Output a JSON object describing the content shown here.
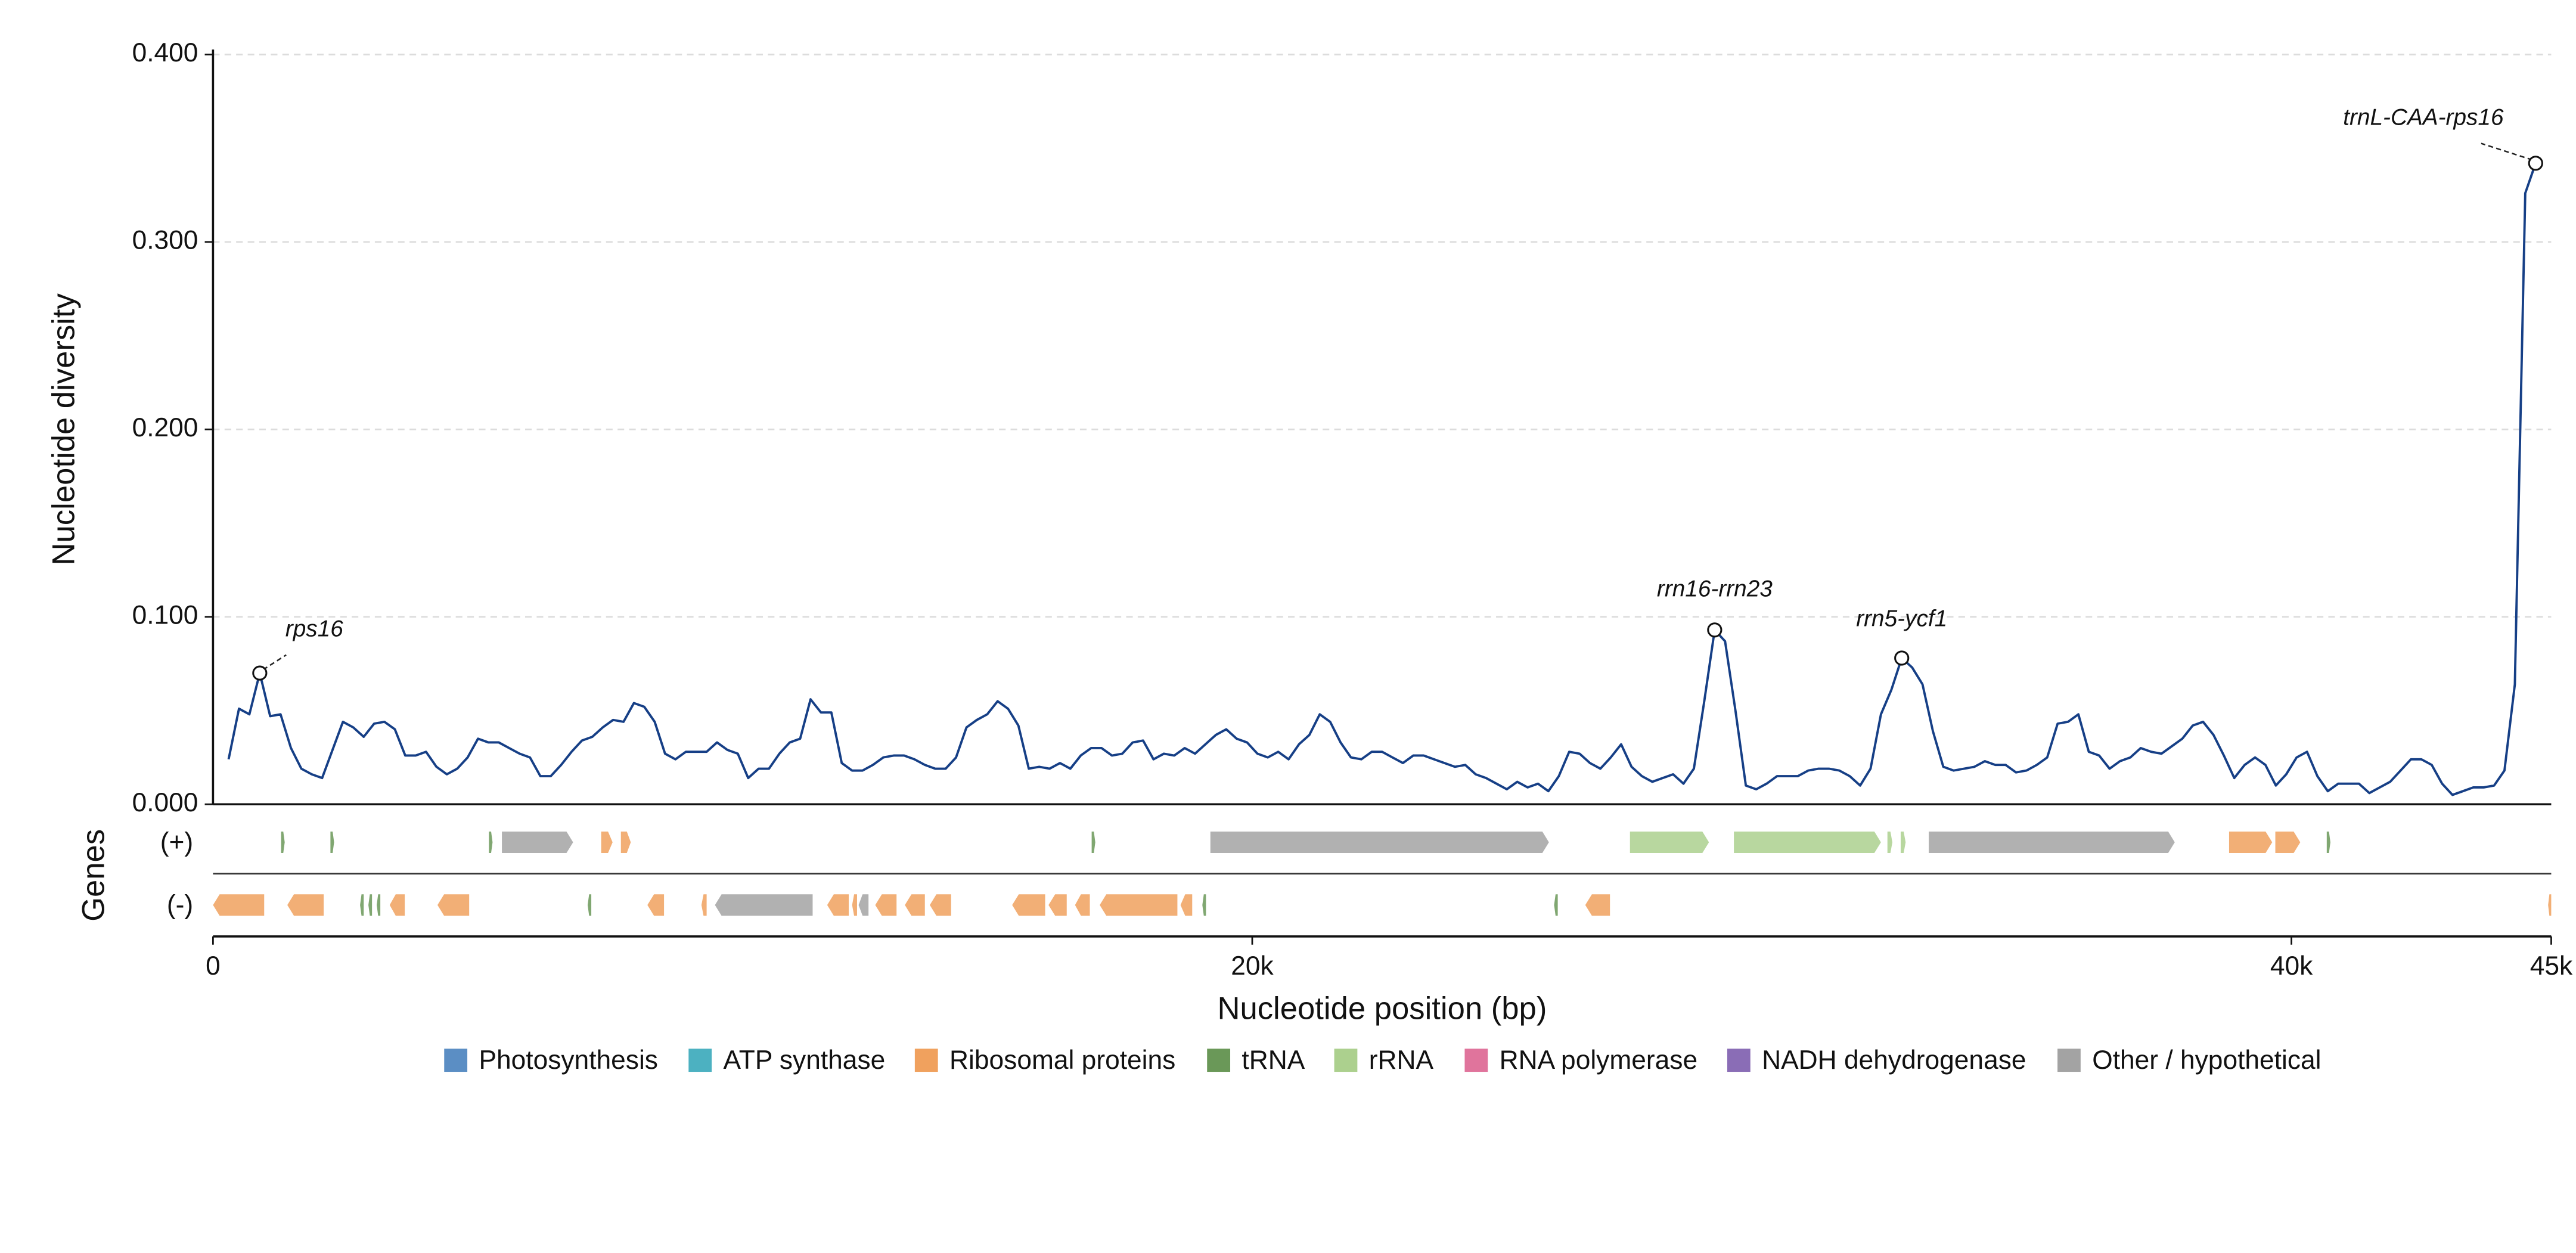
{
  "chart_data": {
    "type": "line",
    "ylabel": "Nucleotide diversity",
    "xlabel": "Nucleotide position (bp)",
    "color": "#163f86",
    "xlim": [
      0,
      45000
    ],
    "ylim": [
      0,
      0.4
    ],
    "xticks": [
      0,
      {
        "value": 20000,
        "label": "20k"
      },
      {
        "value": 40000,
        "label": "40k"
      },
      {
        "value": 45000,
        "label": "45k"
      }
    ],
    "yticks": [
      {
        "value": 0,
        "label": "0.000"
      },
      {
        "value": 0.1,
        "label": "0.100"
      },
      {
        "value": 0.2,
        "label": "0.200"
      },
      {
        "value": 0.3,
        "label": "0.300"
      },
      {
        "value": 0.4,
        "label": "0.400"
      }
    ],
    "grid": true,
    "x": [
      300,
      500,
      700,
      900,
      1100,
      1300,
      1500,
      1700,
      1900,
      2100,
      2300,
      2500,
      2700,
      2900,
      3100,
      3300,
      3500,
      3700,
      3900,
      4100,
      4300,
      4500,
      4700,
      4900,
      5100,
      5300,
      5500,
      5700,
      5900,
      6100,
      6300,
      6500,
      6700,
      6900,
      7100,
      7300,
      7500,
      7700,
      7900,
      8100,
      8300,
      8500,
      8700,
      8900,
      9100,
      9300,
      9500,
      9700,
      9900,
      10100,
      10300,
      10500,
      10700,
      10900,
      11100,
      11300,
      11500,
      11700,
      11900,
      12100,
      12300,
      12500,
      12700,
      12900,
      13100,
      13300,
      13500,
      13700,
      13900,
      14100,
      14300,
      14500,
      14700,
      14900,
      15100,
      15300,
      15500,
      15700,
      15900,
      16100,
      16300,
      16500,
      16700,
      16900,
      17100,
      17300,
      17500,
      17700,
      17900,
      18100,
      18300,
      18500,
      18700,
      18900,
      19100,
      19300,
      19500,
      19700,
      19900,
      20100,
      20300,
      20500,
      20700,
      20900,
      21100,
      21300,
      21500,
      21700,
      21900,
      22100,
      22300,
      22500,
      22700,
      22900,
      23100,
      23300,
      23500,
      23700,
      23900,
      24100,
      24300,
      24500,
      24700,
      24900,
      25100,
      25300,
      25500,
      25700,
      25900,
      26100,
      26300,
      26500,
      26700,
      26900,
      27100,
      27300,
      27500,
      27700,
      27900,
      28100,
      28300,
      28500,
      28700,
      28900,
      29100,
      29300,
      29500,
      29700,
      29900,
      30100,
      30300,
      30500,
      30700,
      30900,
      31100,
      31300,
      31500,
      31700,
      31900,
      32100,
      32300,
      32500,
      32700,
      32900,
      33100,
      33300,
      33500,
      33700,
      33900,
      34100,
      34300,
      34500,
      34700,
      34900,
      35100,
      35300,
      35500,
      35700,
      35900,
      36100,
      36300,
      36500,
      36700,
      36900,
      37100,
      37300,
      37500,
      37700,
      37900,
      38100,
      38300,
      38500,
      38700,
      38900,
      39100,
      39300,
      39500,
      39700,
      39900,
      40100,
      40300,
      40500,
      40700,
      40900,
      41100,
      41300,
      41500,
      41700,
      41900,
      42100,
      42300,
      42500,
      42700,
      42900,
      43100,
      43300,
      43500,
      43700,
      43900,
      44100,
      44300,
      44500,
      44700
    ],
    "values": [
      0.024,
      0.051,
      0.048,
      0.07,
      0.047,
      0.048,
      0.03,
      0.019,
      0.016,
      0.014,
      0.029,
      0.044,
      0.041,
      0.036,
      0.043,
      0.044,
      0.04,
      0.026,
      0.026,
      0.028,
      0.02,
      0.016,
      0.019,
      0.025,
      0.035,
      0.033,
      0.033,
      0.03,
      0.027,
      0.025,
      0.015,
      0.015,
      0.021,
      0.028,
      0.034,
      0.036,
      0.041,
      0.045,
      0.044,
      0.054,
      0.052,
      0.044,
      0.027,
      0.024,
      0.028,
      0.028,
      0.028,
      0.033,
      0.029,
      0.027,
      0.014,
      0.019,
      0.019,
      0.027,
      0.033,
      0.035,
      0.056,
      0.049,
      0.049,
      0.022,
      0.018,
      0.018,
      0.021,
      0.025,
      0.026,
      0.026,
      0.024,
      0.021,
      0.019,
      0.019,
      0.025,
      0.041,
      0.045,
      0.048,
      0.055,
      0.051,
      0.042,
      0.019,
      0.02,
      0.019,
      0.022,
      0.019,
      0.026,
      0.03,
      0.03,
      0.026,
      0.027,
      0.033,
      0.034,
      0.024,
      0.027,
      0.026,
      0.03,
      0.027,
      0.032,
      0.037,
      0.04,
      0.035,
      0.033,
      0.027,
      0.025,
      0.028,
      0.024,
      0.032,
      0.037,
      0.048,
      0.044,
      0.033,
      0.025,
      0.024,
      0.028,
      0.028,
      0.025,
      0.022,
      0.026,
      0.026,
      0.024,
      0.022,
      0.02,
      0.021,
      0.016,
      0.014,
      0.011,
      0.008,
      0.012,
      0.009,
      0.011,
      0.007,
      0.015,
      0.028,
      0.027,
      0.022,
      0.019,
      0.025,
      0.032,
      0.02,
      0.015,
      0.012,
      0.014,
      0.016,
      0.011,
      0.019,
      0.055,
      0.093,
      0.087,
      0.05,
      0.01,
      0.008,
      0.011,
      0.015,
      0.015,
      0.015,
      0.018,
      0.019,
      0.019,
      0.018,
      0.015,
      0.01,
      0.019,
      0.048,
      0.061,
      0.078,
      0.073,
      0.064,
      0.039,
      0.02,
      0.018,
      0.019,
      0.02,
      0.023,
      0.021,
      0.021,
      0.017,
      0.018,
      0.021,
      0.025,
      0.043,
      0.044,
      0.048,
      0.028,
      0.026,
      0.019,
      0.023,
      0.025,
      0.03,
      0.028,
      0.027,
      0.031,
      0.035,
      0.042,
      0.044,
      0.037,
      0.026,
      0.014,
      0.021,
      0.025,
      0.021,
      0.01,
      0.016,
      0.025,
      0.028,
      0.015,
      0.007,
      0.011,
      0.011,
      0.011,
      0.006,
      0.009,
      0.012,
      0.018,
      0.024,
      0.024,
      0.021,
      0.011,
      0.005,
      0.007,
      0.009,
      0.009,
      0.01,
      0.018,
      0.064,
      0.326,
      0.342
    ],
    "annotations": [
      {
        "text": "rps16",
        "x": 900,
        "y": 0.07
      },
      {
        "text": "rrn16-rrn23",
        "x": 28900,
        "y": 0.093
      },
      {
        "text": "rrn5-ycf1",
        "x": 32500,
        "y": 0.078
      },
      {
        "text": "trnL-CAA-rps16",
        "x": 44700,
        "y": 0.342
      }
    ],
    "genes_label": "Genes",
    "categories": [
      {
        "name": "Photosynthesis",
        "color": "#5b8ec4"
      },
      {
        "name": "ATP synthase",
        "color": "#4cb1c1"
      },
      {
        "name": "Ribosomal proteins",
        "color": "#f0a15e"
      },
      {
        "name": "tRNA",
        "color": "#6a9858"
      },
      {
        "name": "rRNA",
        "color": "#acd08e"
      },
      {
        "name": "RNA polymerase",
        "color": "#e0749c"
      },
      {
        "name": "NADH dehydrogenase",
        "color": "#8a6db6"
      },
      {
        "name": "Other / hypothetical",
        "color": "#a3a3a3"
      }
    ],
    "tracks": [
      {
        "label": "(+)",
        "genes": [
          {
            "start": 1310,
            "end": 1380,
            "category": "tRNA"
          },
          {
            "start": 2260,
            "end": 2330,
            "category": "tRNA"
          },
          {
            "start": 5310,
            "end": 5380,
            "category": "tRNA"
          },
          {
            "start": 5560,
            "end": 6930,
            "category": "Other / hypothetical"
          },
          {
            "start": 7470,
            "end": 7690,
            "category": "Ribosomal proteins"
          },
          {
            "start": 7850,
            "end": 8040,
            "category": "Ribosomal proteins"
          },
          {
            "start": 16910,
            "end": 16980,
            "category": "tRNA"
          },
          {
            "start": 19195,
            "end": 25710,
            "category": "Other / hypothetical"
          },
          {
            "start": 27270,
            "end": 28790,
            "category": "rRNA"
          },
          {
            "start": 29270,
            "end": 32100,
            "category": "rRNA"
          },
          {
            "start": 32225,
            "end": 32320,
            "category": "rRNA"
          },
          {
            "start": 32480,
            "end": 32575,
            "category": "rRNA"
          },
          {
            "start": 33020,
            "end": 37755,
            "category": "Other / hypothetical"
          },
          {
            "start": 38800,
            "end": 39630,
            "category": "Ribosomal proteins"
          },
          {
            "start": 39690,
            "end": 40170,
            "category": "Ribosomal proteins"
          },
          {
            "start": 40680,
            "end": 40750,
            "category": "tRNA"
          }
        ]
      },
      {
        "label": "(-)",
        "genes": [
          {
            "start": 0,
            "end": 985,
            "category": "Ribosomal proteins"
          },
          {
            "start": 1430,
            "end": 2130,
            "category": "Ribosomal proteins"
          },
          {
            "start": 2830,
            "end": 2900,
            "category": "tRNA"
          },
          {
            "start": 2990,
            "end": 3060,
            "category": "tRNA"
          },
          {
            "start": 3150,
            "end": 3220,
            "category": "tRNA"
          },
          {
            "start": 3400,
            "end": 3690,
            "category": "Ribosomal proteins"
          },
          {
            "start": 4320,
            "end": 4930,
            "category": "Ribosomal proteins"
          },
          {
            "start": 7210,
            "end": 7280,
            "category": "tRNA"
          },
          {
            "start": 8360,
            "end": 8680,
            "category": "Ribosomal proteins"
          },
          {
            "start": 9400,
            "end": 9500,
            "category": "Ribosomal proteins"
          },
          {
            "start": 9660,
            "end": 11540,
            "category": "Other / hypothetical"
          },
          {
            "start": 11820,
            "end": 12235,
            "category": "Ribosomal proteins"
          },
          {
            "start": 12300,
            "end": 12395,
            "category": "Ribosomal proteins"
          },
          {
            "start": 12425,
            "end": 12615,
            "category": "Other / hypothetical"
          },
          {
            "start": 12745,
            "end": 13155,
            "category": "Ribosomal proteins"
          },
          {
            "start": 13315,
            "end": 13700,
            "category": "Ribosomal proteins"
          },
          {
            "start": 13795,
            "end": 14205,
            "category": "Ribosomal proteins"
          },
          {
            "start": 15380,
            "end": 16015,
            "category": "Ribosomal proteins"
          },
          {
            "start": 16080,
            "end": 16430,
            "category": "Ribosomal proteins"
          },
          {
            "start": 16590,
            "end": 16875,
            "category": "Ribosomal proteins"
          },
          {
            "start": 17065,
            "end": 18560,
            "category": "Ribosomal proteins"
          },
          {
            "start": 18620,
            "end": 18845,
            "category": "Ribosomal proteins"
          },
          {
            "start": 19040,
            "end": 19110,
            "category": "tRNA"
          },
          {
            "start": 25810,
            "end": 25880,
            "category": "tRNA"
          },
          {
            "start": 26410,
            "end": 26885,
            "category": "Ribosomal proteins"
          },
          {
            "start": 44940,
            "end": 45000,
            "category": "Ribosomal proteins"
          }
        ]
      }
    ]
  }
}
